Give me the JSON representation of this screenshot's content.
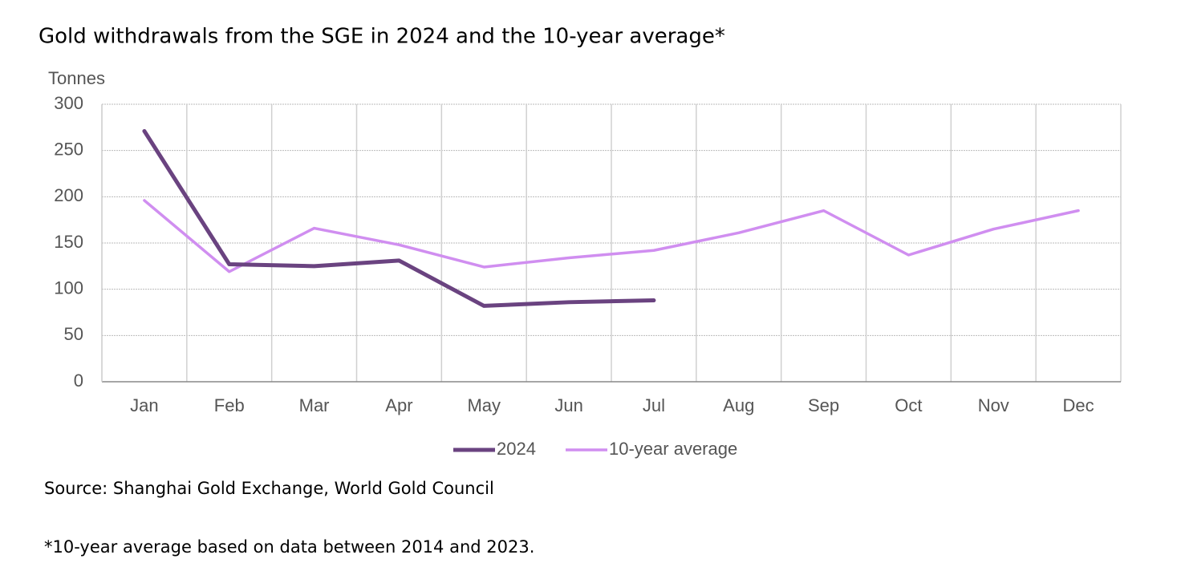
{
  "chart_data": {
    "type": "line",
    "title": "Gold withdrawals from the SGE in 2024 and the 10-year average*",
    "y_label": "Tonnes",
    "categories": [
      "Jan",
      "Feb",
      "Mar",
      "Apr",
      "May",
      "Jun",
      "Jul",
      "Aug",
      "Sep",
      "Oct",
      "Nov",
      "Dec"
    ],
    "series": [
      {
        "name": "2024",
        "color": "#6a4380",
        "values": [
          271,
          127,
          125,
          131,
          82,
          86,
          88,
          null,
          null,
          null,
          null,
          null
        ]
      },
      {
        "name": "10-year average",
        "color": "#d08ef0",
        "values": [
          196,
          119,
          166,
          148,
          124,
          134,
          142,
          161,
          185,
          137,
          165,
          185
        ]
      }
    ],
    "ylim": [
      0,
      300
    ],
    "yticks": [
      0,
      50,
      100,
      150,
      200,
      250,
      300
    ],
    "grid": true,
    "legend": "bottom",
    "source": "Source: Shanghai Gold Exchange, World Gold Council",
    "note": "*10-year average based on data between 2014 and 2023."
  }
}
